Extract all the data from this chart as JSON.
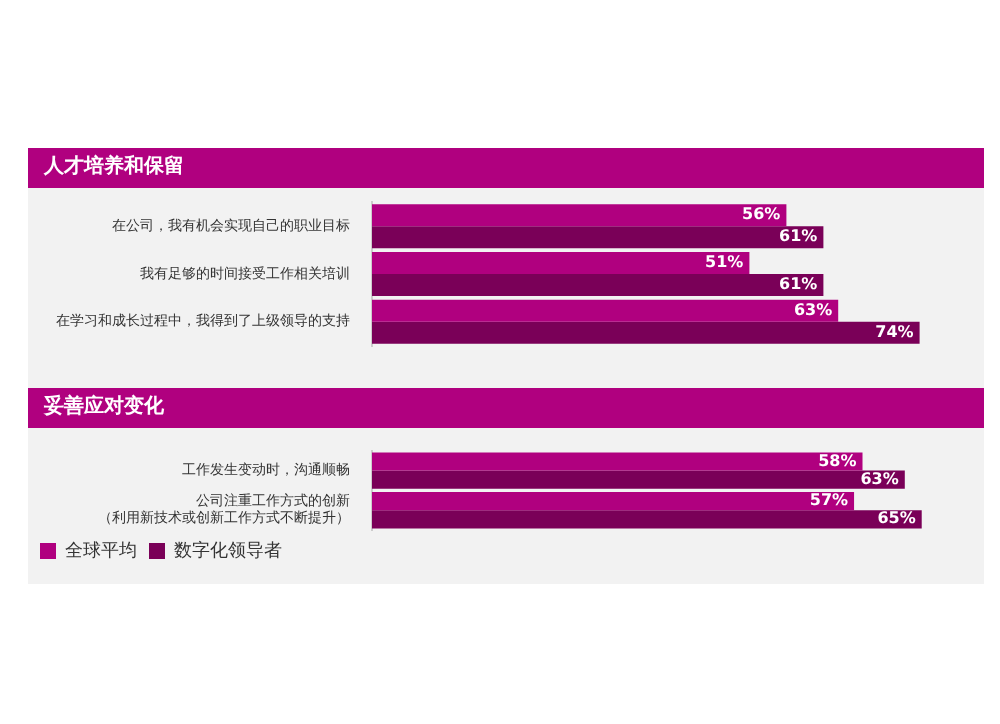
{
  "chart_data": [
    {
      "type": "bar",
      "title": "人才培养和保留",
      "orientation": "horizontal",
      "categories": [
        "在公司，我有机会实现自己的职业目标",
        "我有足够的时间接受工作相关培训",
        "在学习和成长过程中，我得到了上级领导的支持"
      ],
      "series": [
        {
          "color": "#b0007f",
          "values": [
            56,
            51,
            63
          ],
          "value_labels": [
            "56%",
            "51%",
            "63%"
          ]
        },
        {
          "color": "#7a0058",
          "values": [
            61,
            61,
            74
          ],
          "value_labels": [
            "61%",
            "61%",
            "74%"
          ]
        }
      ],
      "tick_labels": "y",
      "legend": false
    },
    {
      "type": "bar",
      "title": "妥善应对变化",
      "orientation": "horizontal",
      "categories": [
        "工作发生变动时，沟通顺畅",
        "公司注重工作方式的创新（利用新技术或创新工作方式不断提升）"
      ],
      "series": [
        {
          "name": "全球平均",
          "color": "#b0007f",
          "values": [
            58,
            57
          ],
          "value_labels": [
            "58%",
            "57%"
          ]
        },
        {
          "name": "数字化领导者",
          "color": "#7a0058",
          "values": [
            63,
            65
          ],
          "value_labels": [
            "63%",
            "65%"
          ]
        }
      ],
      "tick_labels": "y",
      "legend": "bottom left"
    }
  ]
}
